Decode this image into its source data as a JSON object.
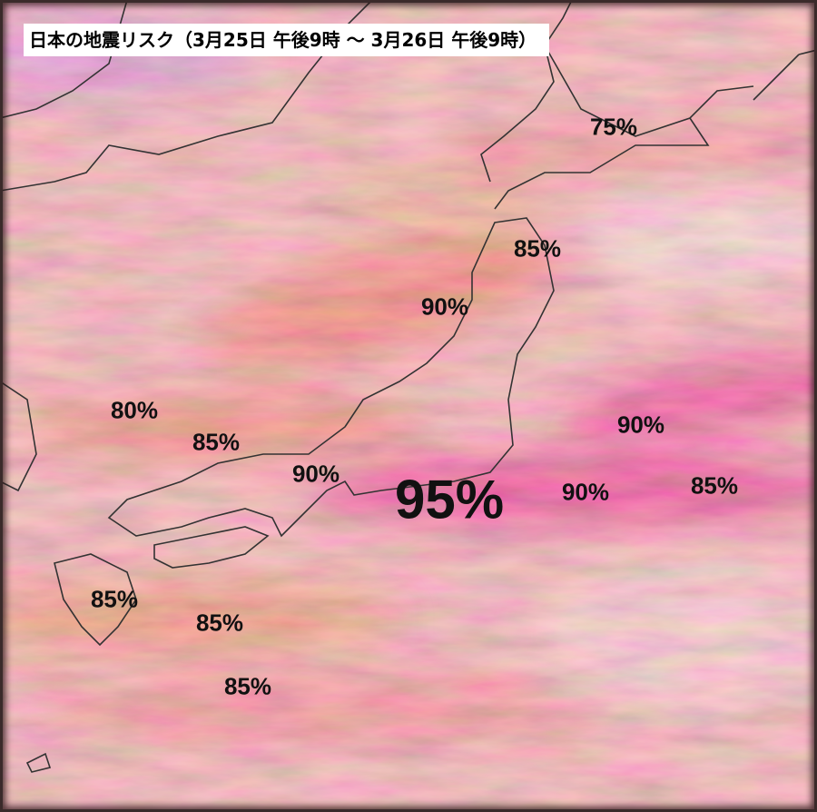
{
  "title": "日本の地震リスク（3月25日 午後9時 ～ 3月26日 午後9時）",
  "labels": [
    {
      "text": "75%"
    },
    {
      "text": "85%"
    },
    {
      "text": "90%"
    },
    {
      "text": "80%"
    },
    {
      "text": "85%"
    },
    {
      "text": "90%"
    },
    {
      "text": "95%"
    },
    {
      "text": "90%"
    },
    {
      "text": "90%"
    },
    {
      "text": "85%"
    },
    {
      "text": "85%"
    },
    {
      "text": "85%"
    },
    {
      "text": "85%"
    }
  ]
}
